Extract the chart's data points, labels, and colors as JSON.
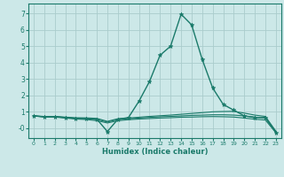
{
  "xlabel": "Humidex (Indice chaleur)",
  "bg_color": "#cce8e8",
  "grid_color": "#aacccc",
  "line_color": "#1a7a6a",
  "xlim": [
    -0.5,
    23.5
  ],
  "ylim": [
    -0.6,
    7.6
  ],
  "x_ticks": [
    0,
    1,
    2,
    3,
    4,
    5,
    6,
    7,
    8,
    9,
    10,
    11,
    12,
    13,
    14,
    15,
    16,
    17,
    18,
    19,
    20,
    21,
    22,
    23
  ],
  "y_ticks": [
    0,
    1,
    2,
    3,
    4,
    5,
    6,
    7
  ],
  "y_tick_labels": [
    "-0",
    "1",
    "2",
    "3",
    "4",
    "5",
    "6",
    "7"
  ],
  "lines": [
    {
      "x": [
        0,
        1,
        2,
        3,
        4,
        5,
        6,
        7,
        8,
        9,
        10,
        11,
        12,
        13,
        14,
        15,
        16,
        17,
        18,
        19,
        20,
        21,
        22,
        23
      ],
      "y": [
        0.75,
        0.7,
        0.7,
        0.65,
        0.6,
        0.6,
        0.55,
        -0.2,
        0.55,
        0.65,
        1.65,
        2.85,
        4.45,
        5.0,
        6.95,
        6.3,
        4.2,
        2.45,
        1.45,
        1.1,
        0.75,
        0.65,
        0.65,
        -0.25
      ],
      "marker": true,
      "lw": 1.0
    },
    {
      "x": [
        0,
        1,
        2,
        3,
        4,
        5,
        6,
        7,
        8,
        9,
        10,
        11,
        12,
        13,
        14,
        15,
        16,
        17,
        18,
        19,
        20,
        21,
        22,
        23
      ],
      "y": [
        0.75,
        0.72,
        0.72,
        0.68,
        0.64,
        0.63,
        0.6,
        0.42,
        0.58,
        0.62,
        0.67,
        0.72,
        0.76,
        0.8,
        0.85,
        0.9,
        0.95,
        1.0,
        1.02,
        1.03,
        0.92,
        0.8,
        0.72,
        -0.18
      ],
      "marker": false,
      "lw": 0.8
    },
    {
      "x": [
        0,
        1,
        2,
        3,
        4,
        5,
        6,
        7,
        8,
        9,
        10,
        11,
        12,
        13,
        14,
        15,
        16,
        17,
        18,
        19,
        20,
        21,
        22,
        23
      ],
      "y": [
        0.75,
        0.7,
        0.7,
        0.65,
        0.6,
        0.58,
        0.53,
        0.38,
        0.53,
        0.58,
        0.62,
        0.66,
        0.7,
        0.72,
        0.75,
        0.78,
        0.8,
        0.82,
        0.82,
        0.8,
        0.75,
        0.68,
        0.62,
        -0.22
      ],
      "marker": false,
      "lw": 0.8
    },
    {
      "x": [
        0,
        1,
        2,
        3,
        4,
        5,
        6,
        7,
        8,
        9,
        10,
        11,
        12,
        13,
        14,
        15,
        16,
        17,
        18,
        19,
        20,
        21,
        22,
        23
      ],
      "y": [
        0.75,
        0.68,
        0.68,
        0.62,
        0.56,
        0.53,
        0.46,
        0.32,
        0.46,
        0.52,
        0.56,
        0.59,
        0.62,
        0.64,
        0.67,
        0.68,
        0.7,
        0.71,
        0.7,
        0.68,
        0.62,
        0.55,
        0.5,
        -0.28
      ],
      "marker": false,
      "lw": 0.8
    }
  ]
}
